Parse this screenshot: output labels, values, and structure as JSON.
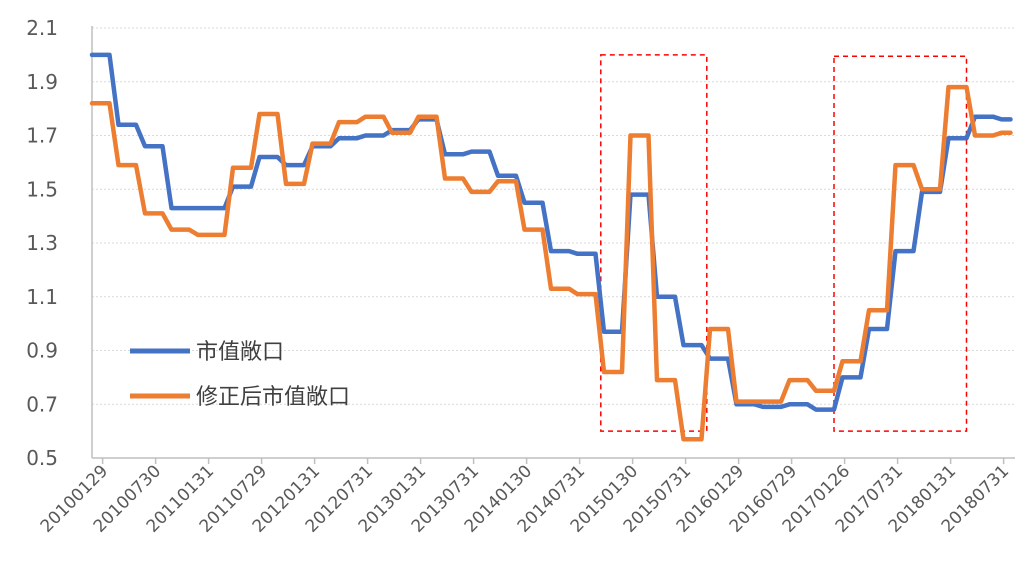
{
  "chart_data": {
    "type": "line",
    "ylim": [
      0.5,
      2.1
    ],
    "y_ticks": [
      "0.5",
      "0.7",
      "0.9",
      "1.1",
      "1.3",
      "1.5",
      "1.7",
      "1.9",
      "2.1"
    ],
    "x_ticks": [
      "20100129",
      "20100730",
      "20110131",
      "20110729",
      "20120131",
      "20120731",
      "20130131",
      "20130731",
      "20140130",
      "20140731",
      "20150130",
      "20150731",
      "20160129",
      "20160729",
      "20170126",
      "20170731",
      "20180131",
      "20180731"
    ],
    "grid": true,
    "legend_position": "left-middle",
    "highlight_boxes": [
      {
        "x_start": 9.6,
        "x_end": 11.6,
        "y_start": 0.6,
        "y_end": 2.0
      },
      {
        "x_start": 14.0,
        "x_end": 16.5,
        "y_start": 0.6,
        "y_end": 1.995
      }
    ],
    "series": [
      {
        "name": "市值敞口",
        "color": "#4472C4",
        "points": [
          [
            0.0,
            2.0
          ],
          [
            0.33,
            2.0
          ],
          [
            0.5,
            1.74
          ],
          [
            0.83,
            1.74
          ],
          [
            1.0,
            1.66
          ],
          [
            1.33,
            1.66
          ],
          [
            1.5,
            1.43
          ],
          [
            1.83,
            1.43
          ],
          [
            2.0,
            1.43
          ],
          [
            2.5,
            1.43
          ],
          [
            2.66,
            1.51
          ],
          [
            3.0,
            1.51
          ],
          [
            3.16,
            1.62
          ],
          [
            3.5,
            1.62
          ],
          [
            3.66,
            1.59
          ],
          [
            4.0,
            1.59
          ],
          [
            4.16,
            1.66
          ],
          [
            4.5,
            1.66
          ],
          [
            4.66,
            1.69
          ],
          [
            5.0,
            1.69
          ],
          [
            5.16,
            1.7
          ],
          [
            5.5,
            1.7
          ],
          [
            5.66,
            1.72
          ],
          [
            6.0,
            1.72
          ],
          [
            6.16,
            1.76
          ],
          [
            6.5,
            1.76
          ],
          [
            6.66,
            1.63
          ],
          [
            7.0,
            1.63
          ],
          [
            7.16,
            1.64
          ],
          [
            7.5,
            1.64
          ],
          [
            7.66,
            1.55
          ],
          [
            8.0,
            1.55
          ],
          [
            8.16,
            1.45
          ],
          [
            8.5,
            1.45
          ],
          [
            8.66,
            1.27
          ],
          [
            9.0,
            1.27
          ],
          [
            9.16,
            1.26
          ],
          [
            9.5,
            1.26
          ],
          [
            9.66,
            0.97
          ],
          [
            10.0,
            0.97
          ],
          [
            10.16,
            1.48
          ],
          [
            10.5,
            1.48
          ],
          [
            10.66,
            1.1
          ],
          [
            11.0,
            1.1
          ],
          [
            11.16,
            0.92
          ],
          [
            11.5,
            0.92
          ],
          [
            11.66,
            0.87
          ],
          [
            12.0,
            0.87
          ],
          [
            12.16,
            0.7
          ],
          [
            12.5,
            0.7
          ],
          [
            12.66,
            0.69
          ],
          [
            13.0,
            0.69
          ],
          [
            13.16,
            0.7
          ],
          [
            13.5,
            0.7
          ],
          [
            13.66,
            0.68
          ],
          [
            14.0,
            0.68
          ],
          [
            14.16,
            0.8
          ],
          [
            14.5,
            0.8
          ],
          [
            14.66,
            0.98
          ],
          [
            15.0,
            0.98
          ],
          [
            15.16,
            1.27
          ],
          [
            15.5,
            1.27
          ],
          [
            15.66,
            1.49
          ],
          [
            16.0,
            1.49
          ],
          [
            16.16,
            1.69
          ],
          [
            16.5,
            1.69
          ],
          [
            16.66,
            1.77
          ],
          [
            17.0,
            1.77
          ],
          [
            17.16,
            1.76
          ],
          [
            17.33,
            1.76
          ]
        ]
      },
      {
        "name": "修正后市值敞口",
        "color": "#ED7D31",
        "points": [
          [
            0.0,
            1.82
          ],
          [
            0.33,
            1.82
          ],
          [
            0.5,
            1.59
          ],
          [
            0.83,
            1.59
          ],
          [
            1.0,
            1.41
          ],
          [
            1.33,
            1.41
          ],
          [
            1.5,
            1.35
          ],
          [
            1.83,
            1.35
          ],
          [
            2.0,
            1.33
          ],
          [
            2.5,
            1.33
          ],
          [
            2.66,
            1.58
          ],
          [
            3.0,
            1.58
          ],
          [
            3.16,
            1.78
          ],
          [
            3.5,
            1.78
          ],
          [
            3.66,
            1.52
          ],
          [
            4.0,
            1.52
          ],
          [
            4.16,
            1.67
          ],
          [
            4.5,
            1.67
          ],
          [
            4.66,
            1.75
          ],
          [
            5.0,
            1.75
          ],
          [
            5.16,
            1.77
          ],
          [
            5.5,
            1.77
          ],
          [
            5.66,
            1.71
          ],
          [
            6.0,
            1.71
          ],
          [
            6.16,
            1.77
          ],
          [
            6.5,
            1.77
          ],
          [
            6.66,
            1.54
          ],
          [
            7.0,
            1.54
          ],
          [
            7.16,
            1.49
          ],
          [
            7.5,
            1.49
          ],
          [
            7.66,
            1.53
          ],
          [
            8.0,
            1.53
          ],
          [
            8.16,
            1.35
          ],
          [
            8.5,
            1.35
          ],
          [
            8.66,
            1.13
          ],
          [
            9.0,
            1.13
          ],
          [
            9.16,
            1.11
          ],
          [
            9.5,
            1.11
          ],
          [
            9.66,
            0.82
          ],
          [
            10.0,
            0.82
          ],
          [
            10.16,
            1.7
          ],
          [
            10.5,
            1.7
          ],
          [
            10.66,
            0.79
          ],
          [
            11.0,
            0.79
          ],
          [
            11.16,
            0.57
          ],
          [
            11.5,
            0.57
          ],
          [
            11.66,
            0.98
          ],
          [
            12.0,
            0.98
          ],
          [
            12.16,
            0.71
          ],
          [
            12.5,
            0.71
          ],
          [
            12.66,
            0.71
          ],
          [
            13.0,
            0.71
          ],
          [
            13.16,
            0.79
          ],
          [
            13.5,
            0.79
          ],
          [
            13.66,
            0.75
          ],
          [
            14.0,
            0.75
          ],
          [
            14.16,
            0.86
          ],
          [
            14.5,
            0.86
          ],
          [
            14.66,
            1.05
          ],
          [
            15.0,
            1.05
          ],
          [
            15.16,
            1.59
          ],
          [
            15.5,
            1.59
          ],
          [
            15.66,
            1.5
          ],
          [
            16.0,
            1.5
          ],
          [
            16.16,
            1.88
          ],
          [
            16.5,
            1.88
          ],
          [
            16.66,
            1.7
          ],
          [
            17.0,
            1.7
          ],
          [
            17.16,
            1.71
          ],
          [
            17.33,
            1.71
          ]
        ]
      }
    ]
  },
  "legend": {
    "series1": "市值敞口",
    "series2": "修正后市值敞口"
  }
}
